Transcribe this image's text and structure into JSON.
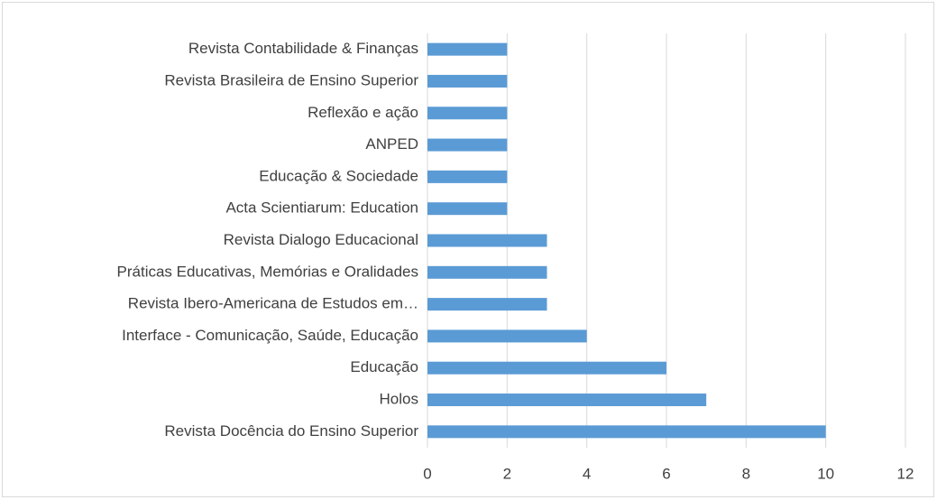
{
  "chart_data": {
    "type": "hbar",
    "categories": [
      "Revista Contabilidade & Finanças",
      "Revista Brasileira de Ensino Superior",
      "Reflexão e ação",
      "ANPED",
      "Educação & Sociedade",
      "Acta Scientiarum: Education",
      "Revista Dialogo Educacional",
      "Práticas Educativas, Memórias e Oralidades",
      "Revista Ibero-Americana de Estudos em…",
      "Interface - Comunicação, Saúde, Educação",
      "Educação",
      "Holos",
      "Revista Docência do Ensino Superior"
    ],
    "values": [
      2,
      2,
      2,
      2,
      2,
      2,
      3,
      3,
      3,
      4,
      6,
      7,
      10
    ],
    "color": "#5b9bd5",
    "xlim": [
      0,
      12
    ],
    "xticks": [
      0,
      2,
      4,
      6,
      8,
      10,
      12
    ],
    "grid": true
  }
}
